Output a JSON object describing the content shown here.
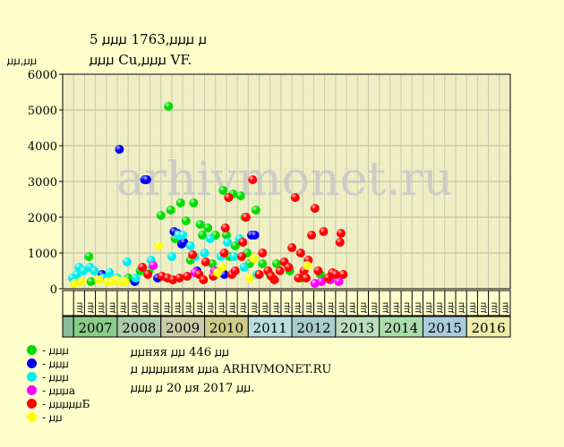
{
  "title": {
    "line1": "5 ꙡꙡꙡ 1763,ꙡꙡꙡ ꙡ",
    "line2": "ꙡꙡꙡ Cu,ꙡꙡꙡ VF."
  },
  "y_unit": "ꙡꙡ,ꙡꙡ",
  "watermark": "arhivmonet.ru",
  "footer": {
    "line1": "ꙡꙡняя ꙡꙡ 446 ꙡꙡ",
    "line2": "ꙡ ꙡꙡꙡꙡиям ꙡꙡа ARHIVMONET.RU",
    "line3": "ꙡꙡꙡ ꙡ 20 ꙡя 2017 ꙡꙡ."
  },
  "legend": [
    {
      "label": "- ꙡꙡꙡ",
      "color": "#00dd00"
    },
    {
      "label": "- ꙡꙡꙡ",
      "color": "#0000ee"
    },
    {
      "label": "- ꙡꙡꙡ",
      "color": "#00eeee"
    },
    {
      "label": "- ꙡꙡꙡа",
      "color": "#ff00ff"
    },
    {
      "label": "- ꙡꙡꙡꙡꙡБ",
      "color": "#ff0000"
    },
    {
      "label": "- ꙡꙡ",
      "color": "#ffff00"
    }
  ],
  "chart_data": {
    "type": "scatter",
    "ylim": [
      0,
      6000
    ],
    "yticks": [
      0,
      1000,
      2000,
      3000,
      4000,
      5000,
      6000
    ],
    "grid": true,
    "legend_position": "bottom-left",
    "years": [
      "2007",
      "2008",
      "2009",
      "2010",
      "2011",
      "2012",
      "2013",
      "2014",
      "2015",
      "2016"
    ],
    "year_colors": [
      "#88cc88",
      "#aaccaa",
      "#ccccaa",
      "#cccc88",
      "#bbdddd",
      "#aacccc",
      "#bbddbb",
      "#aaddaa",
      "#aaccdd",
      "#eeeeaa"
    ],
    "quarter_labels": [
      "ꙡꙡ",
      "ꙡꙡ",
      "ꙡꙡ",
      "ꙡꙡ"
    ],
    "series": [
      {
        "name": "- ꙡꙡꙡ",
        "color": "#00dd00",
        "points": [
          [
            1.9,
            900
          ],
          [
            2.1,
            200
          ],
          [
            3.5,
            350
          ],
          [
            5.5,
            300
          ],
          [
            6.6,
            500
          ],
          [
            7.4,
            500
          ],
          [
            8.5,
            2050
          ],
          [
            9.2,
            5100
          ],
          [
            9.4,
            2200
          ],
          [
            9.8,
            1400
          ],
          [
            10.3,
            2400
          ],
          [
            10.8,
            1900
          ],
          [
            11.5,
            2400
          ],
          [
            12.1,
            1800
          ],
          [
            12.3,
            1500
          ],
          [
            12.8,
            1700
          ],
          [
            13.5,
            1500
          ],
          [
            14.2,
            2750
          ],
          [
            14.5,
            1500
          ],
          [
            15.1,
            2650
          ],
          [
            15.8,
            2600
          ],
          [
            16.2,
            2000
          ],
          [
            16.4,
            1000
          ],
          [
            17.2,
            2200
          ],
          [
            17.8,
            700
          ],
          [
            18.5,
            400
          ],
          [
            19.1,
            700
          ],
          [
            20.3,
            500
          ],
          [
            21.4,
            300
          ],
          [
            23.1,
            400
          ],
          [
            13.2,
            700
          ],
          [
            14.8,
            900
          ],
          [
            16.6,
            700
          ],
          [
            11.2,
            800
          ],
          [
            15.3,
            1200
          ]
        ]
      },
      {
        "name": "- ꙡꙡꙡ",
        "color": "#0000ee",
        "points": [
          [
            3.1,
            400
          ],
          [
            4.7,
            3900
          ],
          [
            6.1,
            200
          ],
          [
            7.0,
            3050
          ],
          [
            7.2,
            3050
          ],
          [
            8.2,
            300
          ],
          [
            9.7,
            1600
          ],
          [
            10.0,
            1550
          ],
          [
            10.4,
            1250
          ],
          [
            10.6,
            1300
          ],
          [
            11.8,
            500
          ],
          [
            16.8,
            1500
          ],
          [
            17.1,
            1500
          ],
          [
            14.3,
            400
          ]
        ]
      },
      {
        "name": "- ꙡꙡꙡ",
        "color": "#00eeee",
        "points": [
          [
            0.4,
            300
          ],
          [
            0.8,
            400
          ],
          [
            1.0,
            600
          ],
          [
            1.4,
            500
          ],
          [
            2.0,
            600
          ],
          [
            2.4,
            500
          ],
          [
            3.2,
            300
          ],
          [
            3.8,
            450
          ],
          [
            4.5,
            300
          ],
          [
            5.4,
            750
          ],
          [
            6.2,
            300
          ],
          [
            7.6,
            800
          ],
          [
            9.5,
            900
          ],
          [
            10.1,
            1500
          ],
          [
            10.5,
            1500
          ],
          [
            11.2,
            1200
          ],
          [
            11.6,
            900
          ],
          [
            12.5,
            1000
          ],
          [
            13.0,
            1400
          ],
          [
            14.0,
            900
          ],
          [
            14.6,
            1300
          ],
          [
            15.2,
            900
          ],
          [
            15.7,
            1400
          ],
          [
            16.1,
            600
          ],
          [
            17.3,
            400
          ]
        ]
      },
      {
        "name": "- ꙡꙡꙡа",
        "color": "#ff00ff",
        "points": [
          [
            7.8,
            650
          ],
          [
            11.6,
            450
          ],
          [
            13.4,
            500
          ],
          [
            23.2,
            200
          ],
          [
            24.0,
            250
          ],
          [
            24.8,
            200
          ],
          [
            22.6,
            150
          ]
        ]
      },
      {
        "name": "- ꙡꙡꙡꙡꙡБ",
        "color": "#ff0000",
        "points": [
          [
            6.8,
            600
          ],
          [
            7.3,
            400
          ],
          [
            8.6,
            350
          ],
          [
            9.1,
            300
          ],
          [
            9.6,
            250
          ],
          [
            10.2,
            300
          ],
          [
            10.9,
            350
          ],
          [
            11.4,
            950
          ],
          [
            12.0,
            400
          ],
          [
            12.6,
            750
          ],
          [
            13.3,
            350
          ],
          [
            14.3,
            1000
          ],
          [
            14.4,
            1700
          ],
          [
            14.7,
            2550
          ],
          [
            15.0,
            400
          ],
          [
            15.3,
            500
          ],
          [
            15.9,
            900
          ],
          [
            16.0,
            1300
          ],
          [
            16.3,
            2000
          ],
          [
            16.9,
            3050
          ],
          [
            17.5,
            400
          ],
          [
            17.8,
            1000
          ],
          [
            18.3,
            500
          ],
          [
            18.9,
            250
          ],
          [
            19.4,
            500
          ],
          [
            19.8,
            750
          ],
          [
            20.2,
            600
          ],
          [
            20.5,
            1150
          ],
          [
            20.8,
            2550
          ],
          [
            21.1,
            300
          ],
          [
            21.3,
            1000
          ],
          [
            21.6,
            500
          ],
          [
            22.0,
            800
          ],
          [
            22.3,
            1500
          ],
          [
            22.6,
            2250
          ],
          [
            22.9,
            500
          ],
          [
            23.4,
            1600
          ],
          [
            23.8,
            300
          ],
          [
            24.2,
            450
          ],
          [
            24.5,
            400
          ],
          [
            24.9,
            1300
          ],
          [
            25.0,
            1550
          ],
          [
            25.2,
            400
          ],
          [
            12.4,
            250
          ],
          [
            18.6,
            350
          ],
          [
            21.8,
            300
          ]
        ]
      },
      {
        "name": "- ꙡꙡ",
        "color": "#ffff00",
        "points": [
          [
            0.6,
            150
          ],
          [
            1.2,
            200
          ],
          [
            2.8,
            250
          ],
          [
            3.6,
            200
          ],
          [
            4.0,
            200
          ],
          [
            4.4,
            250
          ],
          [
            4.9,
            200
          ],
          [
            5.2,
            200
          ],
          [
            8.3,
            1200
          ],
          [
            13.7,
            450
          ],
          [
            14.1,
            600
          ],
          [
            16.6,
            300
          ],
          [
            17.0,
            850
          ],
          [
            21.9,
            650
          ]
        ]
      }
    ]
  }
}
